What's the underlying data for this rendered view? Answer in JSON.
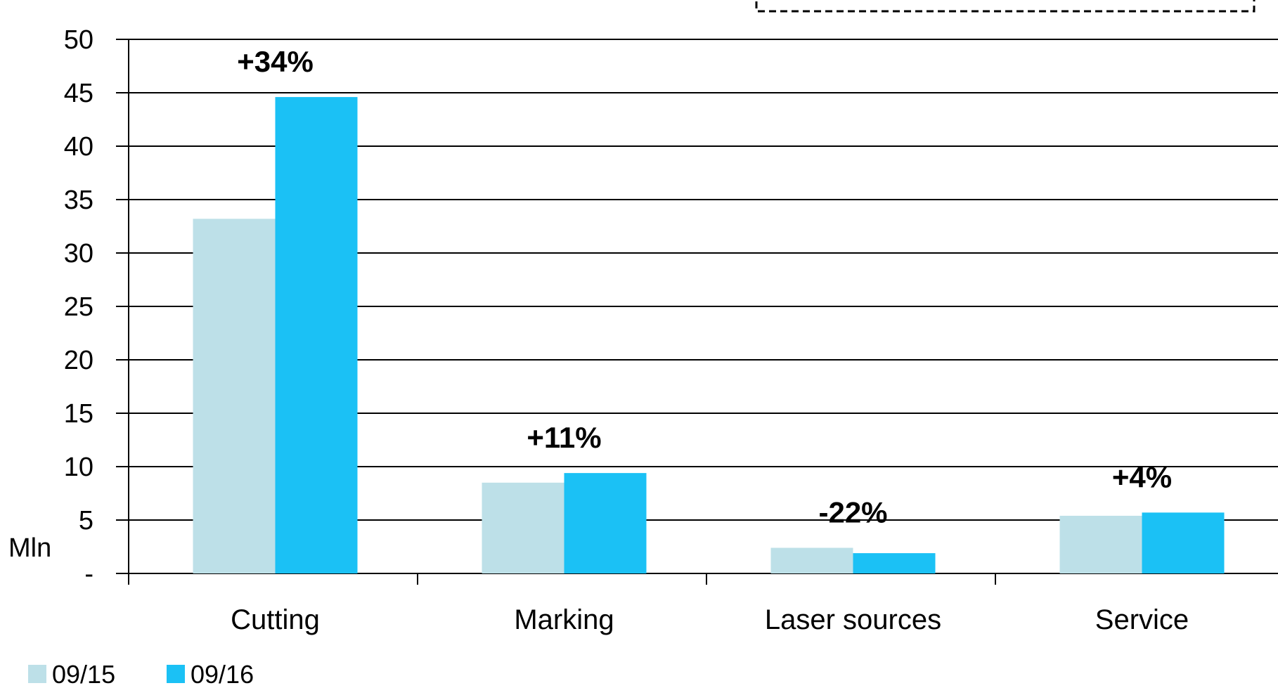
{
  "chart_data": {
    "type": "bar",
    "categories": [
      "Cutting",
      "Marking",
      "Laser sources",
      "Service"
    ],
    "series": [
      {
        "name": "09/15",
        "color": "#BDE0E8",
        "values": [
          33.2,
          8.5,
          2.4,
          5.4
        ]
      },
      {
        "name": "09/16",
        "color": "#1BC1F5",
        "values": [
          44.6,
          9.4,
          1.9,
          5.7
        ]
      }
    ],
    "change_labels": [
      "+34%",
      "+11%",
      "-22%",
      "+4%"
    ],
    "ylabel": "Mln",
    "ylim": [
      0,
      50
    ],
    "yticks": [
      {
        "value": 0,
        "label": "-"
      },
      {
        "value": 5,
        "label": "5"
      },
      {
        "value": 10,
        "label": "10"
      },
      {
        "value": 15,
        "label": "15"
      },
      {
        "value": 20,
        "label": "20"
      },
      {
        "value": 25,
        "label": "25"
      },
      {
        "value": 30,
        "label": "30"
      },
      {
        "value": 35,
        "label": "35"
      },
      {
        "value": 40,
        "label": "40"
      },
      {
        "value": 45,
        "label": "45"
      },
      {
        "value": 50,
        "label": "50"
      }
    ],
    "grid": true,
    "legend_position": "bottom-left"
  }
}
